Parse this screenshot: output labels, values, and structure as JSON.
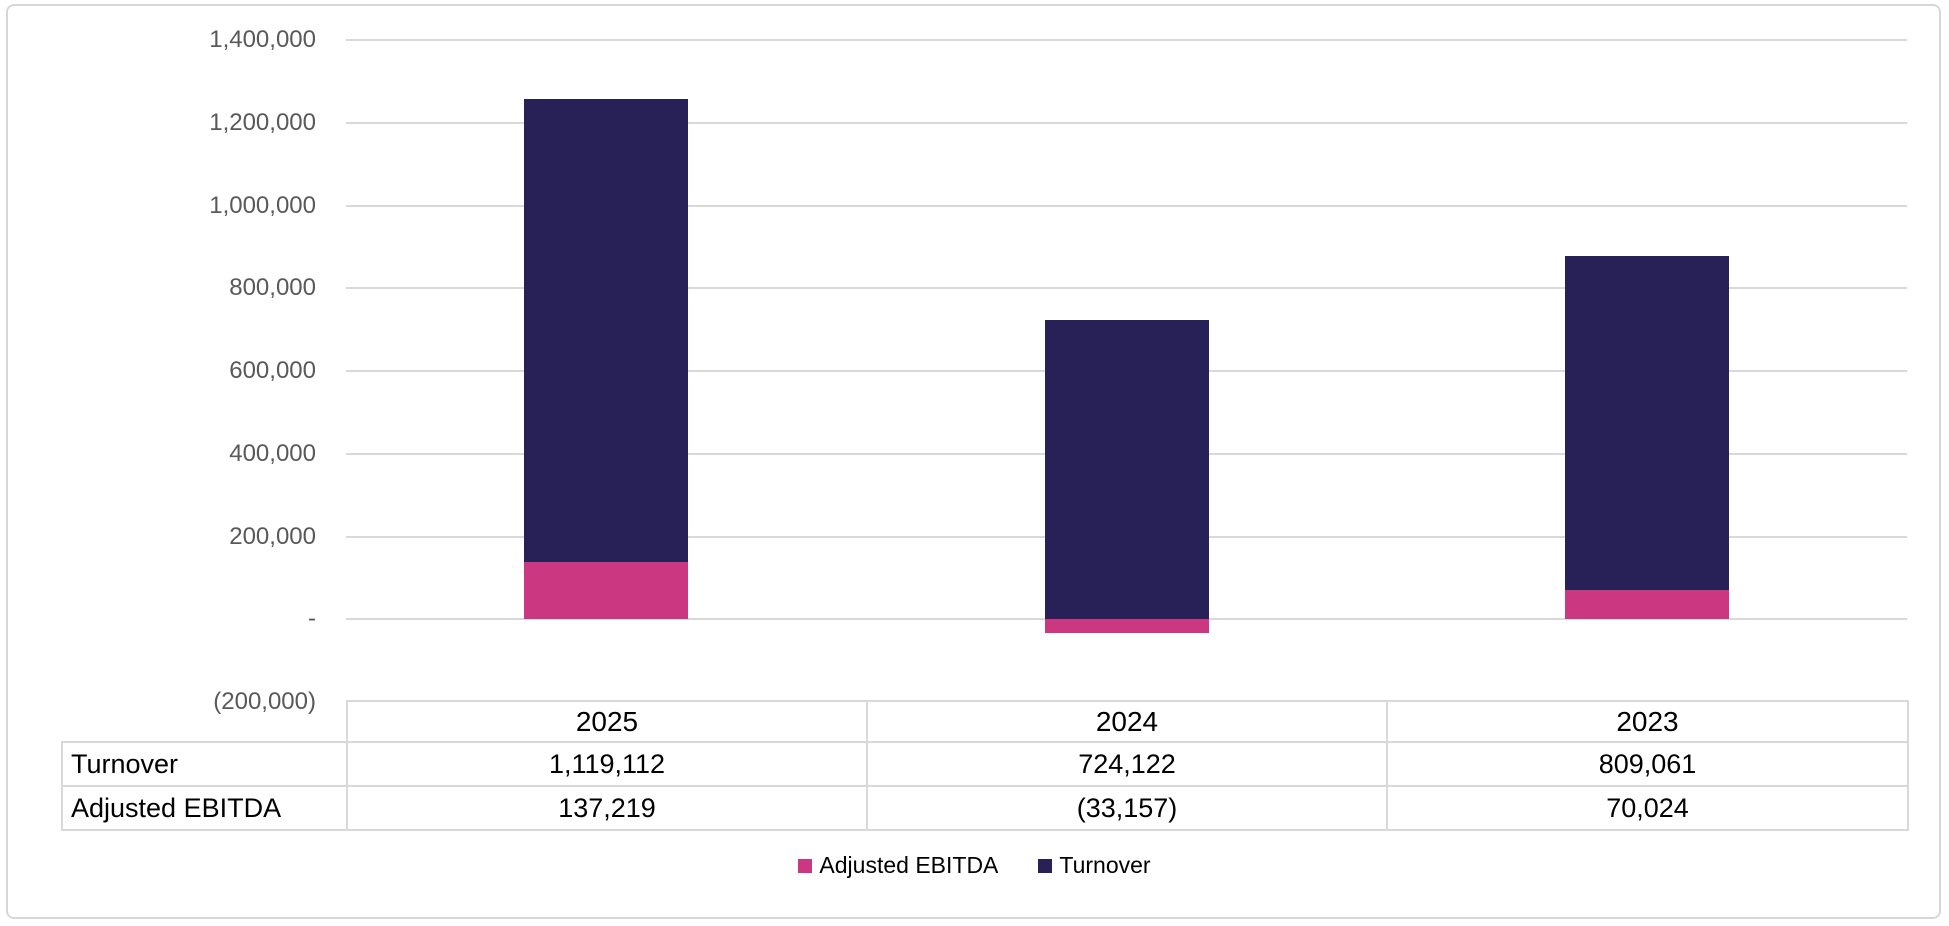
{
  "chart_data": {
    "type": "bar",
    "variant": "stacked-column",
    "categories": [
      "2025",
      "2024",
      "2023"
    ],
    "series": [
      {
        "name": "Adjusted EBITDA",
        "color": "#CC3781",
        "values": [
          137219,
          -33157,
          70024
        ]
      },
      {
        "name": "Turnover",
        "color": "#282157",
        "values": [
          1119112,
          724122,
          809061
        ]
      }
    ],
    "title": "",
    "xlabel": "",
    "ylabel": "",
    "ylim": [
      -200000,
      1400000
    ],
    "y_tick_step": 200000,
    "y_tick_labels": [
      "1,400,000",
      "1,200,000",
      "1,000,000",
      "800,000",
      "600,000",
      "400,000",
      "200,000",
      "-",
      "(200,000)"
    ],
    "grid": "horizontal",
    "legend_position": "bottom"
  },
  "table": {
    "header": [
      "",
      "2025",
      "2024",
      "2023"
    ],
    "rows": [
      {
        "label": "Turnover",
        "values": [
          "1,119,112",
          "724,122",
          "809,061"
        ]
      },
      {
        "label": "Adjusted EBITDA",
        "values": [
          "137,219",
          "(33,157)",
          "70,024"
        ]
      }
    ]
  },
  "legend": {
    "items": [
      {
        "label": "Adjusted EBITDA",
        "color": "#CC3781"
      },
      {
        "label": "Turnover",
        "color": "#282157"
      }
    ]
  },
  "colors": {
    "turnover": "#282157",
    "adjusted_ebitda": "#CC3781",
    "gridline": "#D9D9D9",
    "axis_text": "#595959",
    "table_border": "#D9D9D9",
    "outer_border": "#D7D7D7",
    "background": "#FFFFFF"
  }
}
